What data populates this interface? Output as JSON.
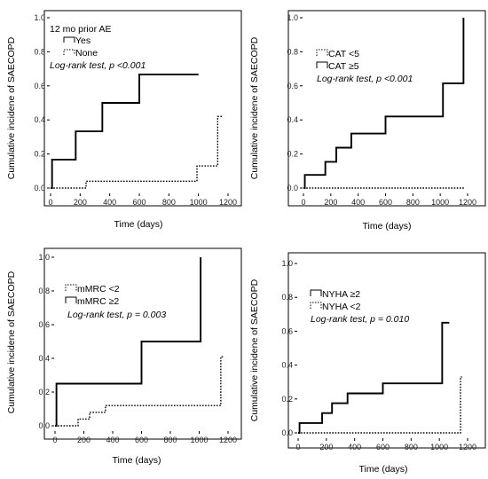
{
  "charts": [
    {
      "type": "line",
      "step": true,
      "ylabel": "Cumulative incidene of SAECOPD",
      "xlabel": "Time (days)",
      "xlim": [
        0,
        1200
      ],
      "ylim": [
        0,
        1.0
      ],
      "xticks": [
        0,
        200,
        400,
        600,
        800,
        1000,
        1200
      ],
      "yticks": [
        0.0,
        0.2,
        0.4,
        0.6,
        0.8,
        1.0
      ],
      "legend_title": "12 mo prior AE",
      "annotation": "Log-rank test, p <0.001",
      "series": [
        {
          "name": "Yes",
          "style": "solid",
          "x": [
            0,
            10,
            170,
            350,
            600,
            1000
          ],
          "y": [
            0,
            0.167,
            0.333,
            0.5,
            0.667,
            0.667
          ]
        },
        {
          "name": "None",
          "style": "dotted",
          "x": [
            0,
            240,
            990,
            1130,
            1160
          ],
          "y": [
            0,
            0.04,
            0.13,
            0.42,
            0.42
          ]
        }
      ]
    },
    {
      "type": "line",
      "step": true,
      "ylabel": "Cumulative incidene of SAECOPD",
      "xlabel": "Time (days)",
      "xlim": [
        0,
        1200
      ],
      "ylim": [
        0,
        1.0
      ],
      "xticks": [
        0,
        200,
        400,
        600,
        800,
        1000,
        1200
      ],
      "yticks": [
        0.0,
        0.2,
        0.4,
        0.6,
        0.8,
        1.0
      ],
      "legend_title": "",
      "annotation": "Log-rank test, p <0.001",
      "series": [
        {
          "name": "CAT <5",
          "style": "dotted",
          "x": [
            0,
            1180
          ],
          "y": [
            0,
            0
          ]
        },
        {
          "name": "CAT ≥5",
          "style": "solid",
          "x": [
            0,
            10,
            160,
            240,
            350,
            600,
            1020,
            1170,
            1170
          ],
          "y": [
            0,
            0.077,
            0.154,
            0.237,
            0.32,
            0.42,
            0.615,
            1.0,
            1.0
          ]
        }
      ]
    },
    {
      "type": "line",
      "step": true,
      "ylabel": "Cumulative incidene of SAECOPD",
      "xlabel": "Time (days)",
      "xlim": [
        0,
        1200
      ],
      "ylim": [
        0,
        1.0
      ],
      "xticks": [
        0,
        200,
        400,
        600,
        800,
        1000,
        1200
      ],
      "yticks": [
        0.0,
        0.2,
        0.4,
        0.6,
        0.8,
        1.0
      ],
      "legend_title": "",
      "annotation": "Log-rank test, p = 0.003",
      "series": [
        {
          "name": "mMRC <2",
          "style": "dotted",
          "x": [
            0,
            160,
            240,
            350,
            1150,
            1170
          ],
          "y": [
            0,
            0.04,
            0.08,
            0.12,
            0.41,
            0.41
          ]
        },
        {
          "name": "mMRC ≥2",
          "style": "solid",
          "x": [
            0,
            10,
            600,
            1010,
            1010
          ],
          "y": [
            0,
            0.25,
            0.5,
            1.0,
            1.0
          ]
        }
      ]
    },
    {
      "type": "line",
      "step": true,
      "ylabel": "Cumulative incidene of SAECOPD",
      "xlabel": "Time (days)",
      "xlim": [
        0,
        1200
      ],
      "ylim": [
        0,
        1.0
      ],
      "xticks": [
        0,
        200,
        400,
        600,
        800,
        1000,
        1200
      ],
      "yticks": [
        0.0,
        0.2,
        0.4,
        0.6,
        0.8,
        1.0
      ],
      "legend_title": "",
      "annotation": "Log-rank test, p = 0.010",
      "series": [
        {
          "name": "NYHA ≥2",
          "style": "solid",
          "x": [
            0,
            10,
            170,
            240,
            350,
            600,
            1020,
            1070
          ],
          "y": [
            0,
            0.058,
            0.117,
            0.175,
            0.233,
            0.292,
            0.65,
            0.65
          ]
        },
        {
          "name": "NYHA <2",
          "style": "dotted",
          "x": [
            0,
            1150,
            1160
          ],
          "y": [
            0,
            0.33,
            0.33
          ]
        }
      ]
    }
  ]
}
